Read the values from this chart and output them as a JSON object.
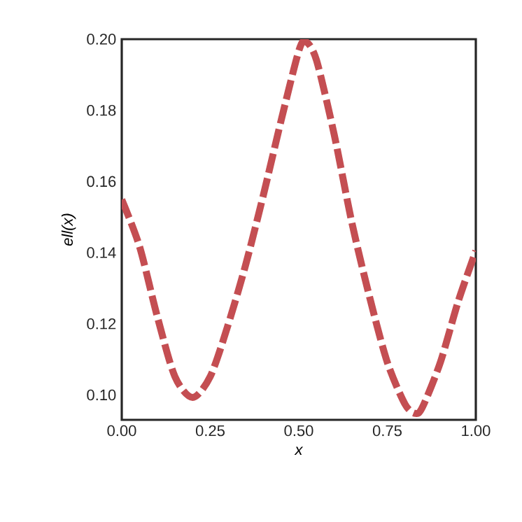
{
  "chart_data": {
    "type": "line",
    "xlabel": "x",
    "ylabel": "ell(x)",
    "x": [
      0.0,
      0.05,
      0.1,
      0.15,
      0.2,
      0.25,
      0.3,
      0.35,
      0.4,
      0.45,
      0.5,
      0.52,
      0.55,
      0.6,
      0.65,
      0.7,
      0.75,
      0.8,
      0.83,
      0.85,
      0.9,
      0.95,
      1.0
    ],
    "series": [
      {
        "color": "#c44e52",
        "values": [
          0.1549,
          0.1418,
          0.1222,
          0.1052,
          0.0993,
          0.1052,
          0.1196,
          0.1366,
          0.1562,
          0.1771,
          0.1967,
          0.1993,
          0.1941,
          0.1732,
          0.1484,
          0.1275,
          0.1092,
          0.0974,
          0.0948,
          0.0967,
          0.1092,
          0.1262,
          0.1405
        ]
      }
    ],
    "xlim": [
      0,
      1
    ],
    "ylim": [
      0.093,
      0.2
    ],
    "xticks": [
      {
        "value": 0,
        "label": "0.00"
      },
      {
        "value": 0.25,
        "label": "0.25"
      },
      {
        "value": 0.5,
        "label": "0.50"
      },
      {
        "value": 0.75,
        "label": "0.75"
      },
      {
        "value": 1,
        "label": "1.00"
      }
    ],
    "yticks": [
      {
        "value": 0.1,
        "label": "0.10"
      },
      {
        "value": 0.12,
        "label": "0.12"
      },
      {
        "value": 0.14,
        "label": "0.14"
      },
      {
        "value": 0.16,
        "label": "0.16"
      },
      {
        "value": 0.18,
        "label": "0.18"
      },
      {
        "value": 0.2,
        "label": "0.20"
      }
    ],
    "grid": false,
    "marker": "none",
    "line_style": "dashed"
  }
}
